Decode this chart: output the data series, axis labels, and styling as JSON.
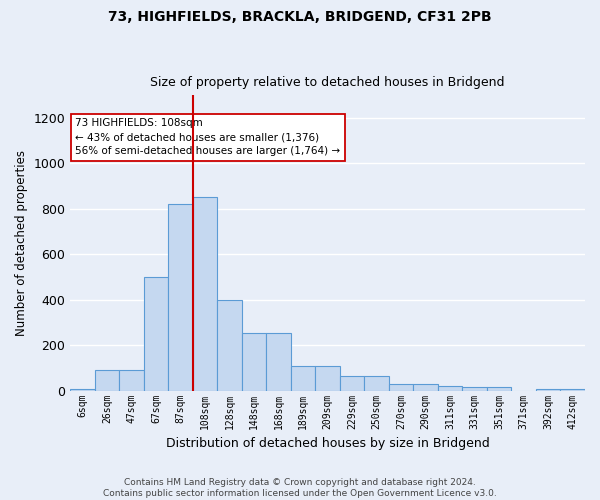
{
  "title1": "73, HIGHFIELDS, BRACKLA, BRIDGEND, CF31 2PB",
  "title2": "Size of property relative to detached houses in Bridgend",
  "xlabel": "Distribution of detached houses by size in Bridgend",
  "ylabel": "Number of detached properties",
  "footnote": "Contains HM Land Registry data © Crown copyright and database right 2024.\nContains public sector information licensed under the Open Government Licence v3.0.",
  "bin_labels": [
    "6sqm",
    "26sqm",
    "47sqm",
    "67sqm",
    "87sqm",
    "108sqm",
    "128sqm",
    "148sqm",
    "168sqm",
    "189sqm",
    "209sqm",
    "229sqm",
    "250sqm",
    "270sqm",
    "290sqm",
    "311sqm",
    "331sqm",
    "351sqm",
    "371sqm",
    "392sqm",
    "412sqm"
  ],
  "bar_values": [
    8,
    90,
    90,
    500,
    820,
    850,
    400,
    255,
    255,
    110,
    110,
    65,
    65,
    30,
    30,
    20,
    15,
    15,
    0,
    8,
    8
  ],
  "bar_color": "#c5d8f0",
  "bar_edge_color": "#5b9bd5",
  "vline_color": "#cc0000",
  "annotation_text": "73 HIGHFIELDS: 108sqm\n← 43% of detached houses are smaller (1,376)\n56% of semi-detached houses are larger (1,764) →",
  "annotation_box_color": "#ffffff",
  "annotation_box_edge": "#cc0000",
  "ylim": [
    0,
    1300
  ],
  "background_color": "#e8eef8",
  "grid_color": "#ffffff",
  "title1_fontsize": 10,
  "title2_fontsize": 9,
  "ylabel_fontsize": 8.5,
  "xlabel_fontsize": 9
}
